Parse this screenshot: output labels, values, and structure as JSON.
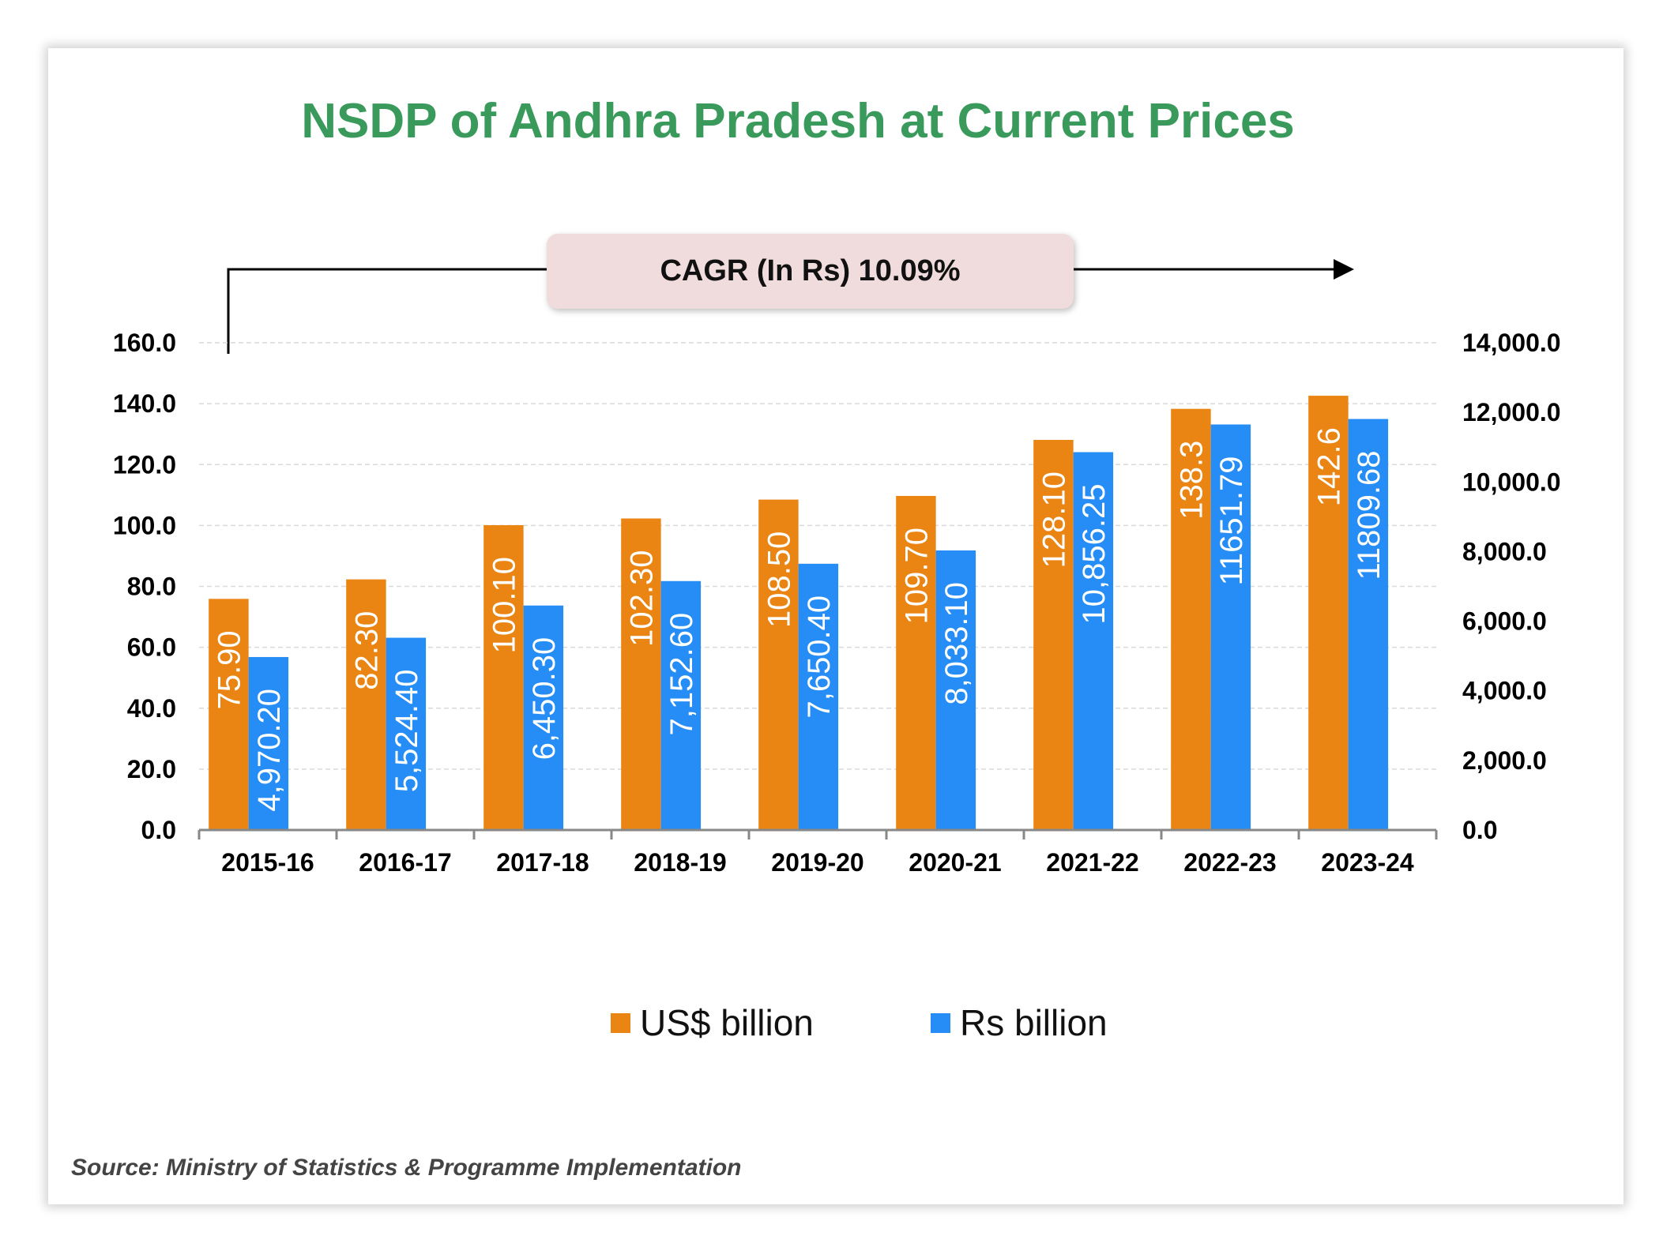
{
  "chart_data": {
    "type": "bar",
    "title": "NSDP of Andhra Pradesh at Current Prices",
    "annotation": "CAGR (In Rs) 10.09%",
    "categories": [
      "2015-16",
      "2016-17",
      "2017-18",
      "2018-19",
      "2019-20",
      "2020-21",
      "2021-22",
      "2022-23",
      "2023-24"
    ],
    "series": [
      {
        "name": "US$ billion",
        "axis": "left",
        "color": "#EA8413",
        "values": [
          75.9,
          82.3,
          100.1,
          102.3,
          108.5,
          109.7,
          128.1,
          138.3,
          142.6
        ],
        "labels": [
          "75.90",
          "82.30",
          "100.10",
          "102.30",
          "108.50",
          "109.70",
          "128.10",
          "138.3",
          "142.6"
        ]
      },
      {
        "name": "Rs billion",
        "axis": "right",
        "color": "#258DF5",
        "values": [
          4970.2,
          5524.4,
          6450.3,
          7152.6,
          7650.4,
          8033.1,
          10856.25,
          11651.79,
          11809.68
        ],
        "labels": [
          "4,970.20",
          "5,524.40",
          "6,450.30",
          "7,152.60",
          "7,650.40",
          "8,033.10",
          "10,856.25",
          "11651.79",
          "11809.68"
        ]
      }
    ],
    "y_left": {
      "lim": [
        0,
        160
      ],
      "ticks": [
        "0.0",
        "20.0",
        "40.0",
        "60.0",
        "80.0",
        "100.0",
        "120.0",
        "140.0",
        "160.0"
      ]
    },
    "y_right": {
      "lim": [
        0,
        14000
      ],
      "ticks": [
        "0.0",
        "2,000.0",
        "4,000.0",
        "6,000.0",
        "8,000.0",
        "10,000.0",
        "12,000.0",
        "14,000.0"
      ]
    },
    "grid": true,
    "legend_position": "bottom",
    "source": "Source: Ministry of Statistics & Programme Implementation",
    "title_color": "#3a9a5c"
  }
}
